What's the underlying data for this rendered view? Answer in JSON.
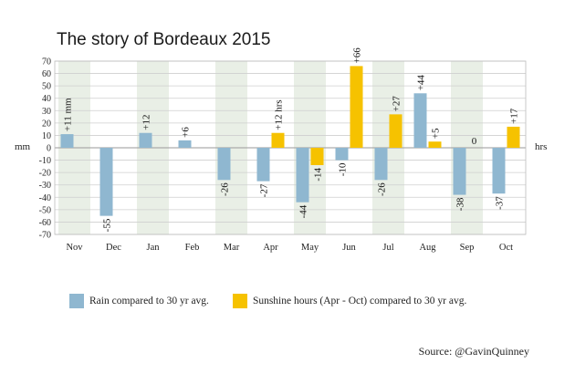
{
  "chart_data": {
    "type": "bar",
    "title": "The story of Bordeaux 2015",
    "ylabel_left": "mm",
    "ylabel_right": "hrs",
    "ylim": [
      -70,
      70
    ],
    "yticks": [
      70,
      60,
      50,
      40,
      30,
      20,
      10,
      0,
      -10,
      -20,
      -30,
      -40,
      -50,
      -60,
      -70
    ],
    "grid": true,
    "legend_placement": "bottom",
    "categories": [
      "Nov",
      "Dec",
      "Jan",
      "Feb",
      "Mar",
      "Apr",
      "May",
      "Jun",
      "Jul",
      "Aug",
      "Sep",
      "Oct"
    ],
    "series": [
      {
        "name": "Rain compared to 30 yr avg.",
        "color": "#8fb7d0",
        "values": [
          11,
          -55,
          12,
          6,
          -26,
          -27,
          -44,
          -10,
          -26,
          44,
          -38,
          -37
        ],
        "labels": [
          "+11 mm",
          "-55",
          "+12",
          "+6",
          "-26",
          "-27",
          "-44",
          "-10",
          "-26",
          "+44",
          "-38",
          "-37"
        ]
      },
      {
        "name": "Sunshine hours (Apr - Oct) compared to 30 yr avg.",
        "color": "#f6c200",
        "values": [
          null,
          null,
          null,
          null,
          null,
          12,
          -14,
          66,
          27,
          5,
          0,
          17
        ],
        "labels": [
          "",
          "",
          "",
          "",
          "",
          "+12 hrs",
          "-14",
          "+66",
          "+27",
          "+5",
          "0",
          "+17"
        ]
      }
    ],
    "shaded_columns": [
      "Nov",
      "Jan",
      "Mar",
      "May",
      "Jul",
      "Sep"
    ],
    "shade_color": "#e9efe6",
    "source": "Source: @GavinQuinney"
  }
}
